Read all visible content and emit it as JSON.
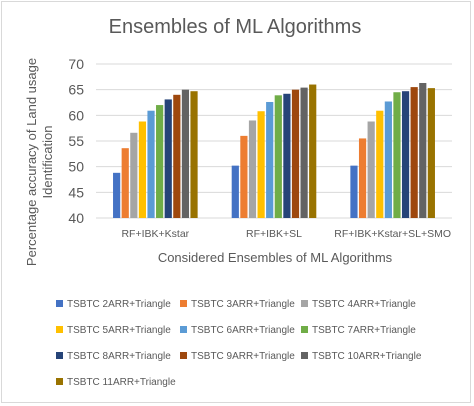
{
  "chart_data": {
    "type": "bar",
    "title": "Ensembles of ML Algorithms",
    "xlabel": "Considered Ensembles of ML Algorithms",
    "ylabel": [
      "Percentage accuracy of Land usage",
      "Identification"
    ],
    "ylim": [
      40,
      70
    ],
    "yticks": [
      40,
      45,
      50,
      55,
      60,
      65,
      70
    ],
    "grid": true,
    "legend_position": "bottom",
    "categories": [
      "RF+IBK+Kstar",
      "RF+IBK+SL",
      "RF+IBK+Kstar+SL+SMO"
    ],
    "series": [
      {
        "name": "TSBTC 2ARR+Triangle",
        "color": "#4472c4",
        "values": [
          48.8,
          50.2,
          50.2
        ]
      },
      {
        "name": "TSBTC 3ARR+Triangle",
        "color": "#ed7d31",
        "values": [
          53.6,
          56.0,
          55.5
        ]
      },
      {
        "name": "TSBTC 4ARR+Triangle",
        "color": "#a5a5a5",
        "values": [
          56.6,
          59.0,
          58.8
        ]
      },
      {
        "name": "TSBTC 5ARR+Triangle",
        "color": "#ffc000",
        "values": [
          58.8,
          60.8,
          60.9
        ]
      },
      {
        "name": "TSBTC 6ARR+Triangle",
        "color": "#5b9bd5",
        "values": [
          60.9,
          62.6,
          62.7
        ]
      },
      {
        "name": "TSBTC 7ARR+Triangle",
        "color": "#70ad47",
        "values": [
          62.0,
          63.9,
          64.5
        ]
      },
      {
        "name": "TSBTC 8ARR+Triangle",
        "color": "#264478",
        "values": [
          63.1,
          64.2,
          64.7
        ]
      },
      {
        "name": "TSBTC 9ARR+Triangle",
        "color": "#9e480e",
        "values": [
          64.0,
          65.0,
          65.5
        ]
      },
      {
        "name": "TSBTC 10ARR+Triangle",
        "color": "#636363",
        "values": [
          65.0,
          65.4,
          66.3
        ]
      },
      {
        "name": "TSBTC 11ARR+Triangle",
        "color": "#997300",
        "values": [
          64.7,
          66.0,
          65.3
        ]
      }
    ]
  }
}
